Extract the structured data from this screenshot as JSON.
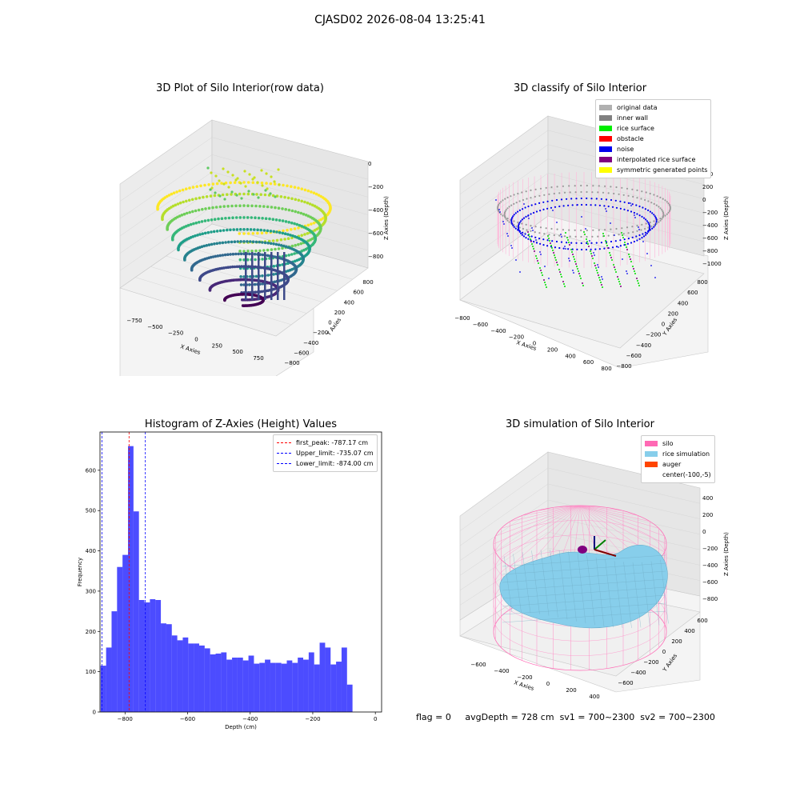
{
  "figure": {
    "suptitle": "CJASD02 2026-08-04 13:25:41",
    "status": {
      "flag": "flag = 0",
      "avg_depth": "avgDepth = 728 cm",
      "sv1": "sv1 = 700~2300",
      "sv2": "sv2 = 700~2300"
    }
  },
  "chart_data": [
    {
      "type": "scatter",
      "title": "3D Plot of Silo Interior(row data)",
      "xlabel": "X Axies",
      "ylabel": "Y Axies",
      "zlabel": "Z Axies (Depth)",
      "x_ticks": [
        "−750",
        "−500",
        "−250",
        "0",
        "250",
        "500",
        "750"
      ],
      "y_ticks": [
        "−800",
        "−600",
        "−400",
        "−200",
        "0",
        "200",
        "400",
        "600",
        "800"
      ],
      "z_ticks": [
        "0",
        "−200",
        "−400",
        "−600",
        "−800"
      ],
      "colormap": "viridis"
    },
    {
      "type": "scatter",
      "title": "3D classify of Silo Interior",
      "xlabel": "X Axies",
      "ylabel": "Y Axies",
      "zlabel": "Z Axies (Depth)",
      "x_ticks": [
        "−800",
        "−600",
        "−400",
        "−200",
        "0",
        "200",
        "400",
        "600",
        "800"
      ],
      "y_ticks": [
        "−800",
        "−600",
        "−400",
        "−200",
        "0",
        "200",
        "400",
        "600",
        "800"
      ],
      "z_ticks": [
        "400",
        "200",
        "0",
        "−200",
        "−400",
        "−600",
        "−800",
        "−1000"
      ],
      "legend": [
        {
          "label": "original data",
          "color": "#b0b0b0"
        },
        {
          "label": "inner wall",
          "color": "#808080"
        },
        {
          "label": "rice surface",
          "color": "#00ee00"
        },
        {
          "label": "obstacle",
          "color": "#ff0000"
        },
        {
          "label": "noise",
          "color": "#0000ee"
        },
        {
          "label": "interpolated rice surface",
          "color": "#800080"
        },
        {
          "label": "symmetric generated points",
          "color": "#ffff00"
        }
      ]
    },
    {
      "type": "bar",
      "title": "Histogram of Z-Axies (Height) Values",
      "xlabel": "Depth (cm)",
      "ylabel": "Frequency",
      "xlim": [
        -880,
        20
      ],
      "ylim": [
        0,
        695
      ],
      "x_ticks": [
        {
          "value": -800,
          "label": "−800"
        },
        {
          "value": -600,
          "label": "−600"
        },
        {
          "value": -400,
          "label": "−400"
        },
        {
          "value": -200,
          "label": "−200"
        },
        {
          "value": 0,
          "label": "0"
        }
      ],
      "y_ticks": [
        {
          "value": 0,
          "label": "0"
        },
        {
          "value": 100,
          "label": "100"
        },
        {
          "value": 200,
          "label": "200"
        },
        {
          "value": 300,
          "label": "300"
        },
        {
          "value": 400,
          "label": "400"
        },
        {
          "value": 500,
          "label": "500"
        },
        {
          "value": 600,
          "label": "600"
        }
      ],
      "bin_start": -878,
      "bin_width": 17.5,
      "values": [
        115,
        160,
        250,
        360,
        390,
        660,
        498,
        278,
        272,
        280,
        278,
        220,
        218,
        190,
        178,
        185,
        170,
        170,
        165,
        158,
        143,
        145,
        148,
        130,
        135,
        135,
        128,
        140,
        120,
        122,
        130,
        122,
        122,
        120,
        128,
        122,
        135,
        130,
        148,
        118,
        172,
        160,
        118,
        125,
        160,
        68
      ],
      "bar_color": "#0000ff",
      "vlines": [
        {
          "value": -787.17,
          "color": "#ff0000",
          "label": "first_peak: -787.17 cm"
        },
        {
          "value": -735.07,
          "color": "#0000ff",
          "label": "Upper_limit: -735.07 cm"
        },
        {
          "value": -874.0,
          "color": "#0000ff",
          "label": "Lower_limit: -874.00 cm"
        }
      ]
    },
    {
      "type": "area",
      "title": "3D simulation of Silo Interior",
      "xlabel": "X Axies",
      "ylabel": "Y Axies",
      "zlabel": "Z Axies (Depth)",
      "x_ticks": [
        "−600",
        "−400",
        "−200",
        "0",
        "200",
        "400"
      ],
      "y_ticks": [
        "−600",
        "−400",
        "−200",
        "0",
        "200",
        "400",
        "600"
      ],
      "z_ticks": [
        "400",
        "200",
        "0",
        "−200",
        "−400",
        "−600",
        "−800"
      ],
      "legend": [
        {
          "label": "silo",
          "color": "#ff69b4"
        },
        {
          "label": "rice simulation",
          "color": "#87ceeb"
        },
        {
          "label": "auger",
          "color": "#ff4500"
        },
        {
          "label": "center(-100,-5)",
          "color": ""
        }
      ]
    }
  ]
}
